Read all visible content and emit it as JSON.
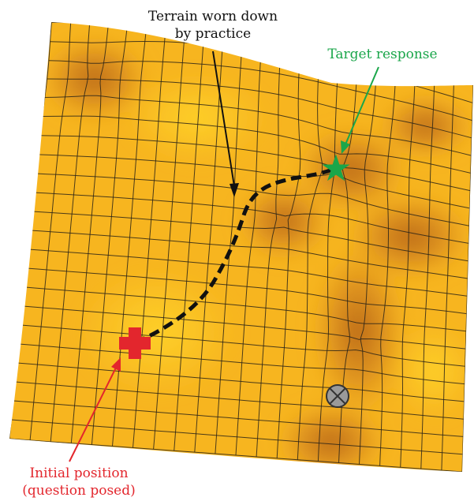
{
  "labels": {
    "terrain_line1": "Terrain worn down",
    "terrain_line2": "by practice",
    "target": "Target response",
    "initial_line1": "Initial position",
    "initial_line2": "(question posed)"
  },
  "colors": {
    "surface": "#f7b51f",
    "surface_dark": "#b7651a",
    "grid": "#2b2418",
    "path": "#111111",
    "target": "#1aa64a",
    "initial": "#e3262d",
    "ball": "#9a9a9a",
    "terrain_label": "#111111"
  },
  "icons": {
    "target_marker": "star-icon",
    "initial_marker": "cross-icon",
    "ball_marker": "circled-x-icon"
  }
}
